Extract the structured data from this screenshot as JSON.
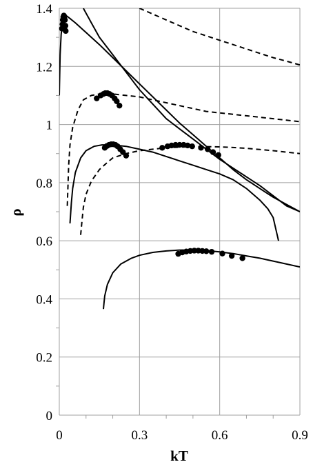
{
  "chart_data": {
    "type": "scatter",
    "xlabel": "kT",
    "ylabel": "ρ",
    "xlim": [
      0,
      0.9
    ],
    "ylim": [
      0,
      1.4
    ],
    "xticks": [
      "0",
      "0.3",
      "0.6",
      "0.9"
    ],
    "yticks": [
      "0",
      "0.2",
      "0.4",
      "0.6",
      "0.8",
      "1",
      "1.2",
      "1.4"
    ],
    "grid": true,
    "legend": "none",
    "line_color": "#000000",
    "grid_color": "#a0a0a0",
    "series": [
      {
        "style": "solid",
        "x": [
          0.0,
          0.003,
          0.007,
          0.012,
          0.018,
          0.024,
          0.03,
          0.04,
          0.06,
          0.09,
          0.12,
          0.15,
          0.2,
          0.25,
          0.3,
          0.35,
          0.4,
          0.45,
          0.5,
          0.55,
          0.6,
          0.65,
          0.7,
          0.75,
          0.8,
          0.85,
          0.9
        ],
        "y": [
          1.1,
          1.24,
          1.31,
          1.35,
          1.37,
          1.375,
          1.372,
          1.365,
          1.35,
          1.325,
          1.3,
          1.275,
          1.23,
          1.185,
          1.14,
          1.095,
          1.05,
          1.005,
          0.965,
          0.925,
          0.885,
          0.845,
          0.81,
          0.78,
          0.75,
          0.725,
          0.7
        ]
      },
      {
        "style": "solid",
        "x": [
          0.09,
          0.12,
          0.15,
          0.2,
          0.25,
          0.3,
          0.35,
          0.4,
          0.45,
          0.5,
          0.55,
          0.6,
          0.65,
          0.7,
          0.75,
          0.8,
          0.85,
          0.9
        ],
        "y": [
          1.4,
          1.35,
          1.3,
          1.24,
          1.18,
          1.12,
          1.07,
          1.02,
          0.985,
          0.95,
          0.915,
          0.88,
          0.85,
          0.82,
          0.79,
          0.755,
          0.72,
          0.7
        ]
      },
      {
        "style": "solid",
        "x": [
          0.04,
          0.045,
          0.05,
          0.06,
          0.08,
          0.1,
          0.13,
          0.16,
          0.2,
          0.25,
          0.3,
          0.35,
          0.4,
          0.45,
          0.5,
          0.55,
          0.6,
          0.65,
          0.7,
          0.75,
          0.78,
          0.8,
          0.81,
          0.82
        ],
        "y": [
          0.66,
          0.73,
          0.78,
          0.835,
          0.885,
          0.91,
          0.925,
          0.93,
          0.93,
          0.925,
          0.915,
          0.905,
          0.89,
          0.875,
          0.86,
          0.845,
          0.83,
          0.81,
          0.78,
          0.74,
          0.71,
          0.68,
          0.64,
          0.6
        ]
      },
      {
        "style": "solid",
        "x": [
          0.165,
          0.167,
          0.17,
          0.18,
          0.2,
          0.23,
          0.27,
          0.3,
          0.35,
          0.4,
          0.45,
          0.5,
          0.55,
          0.6,
          0.65,
          0.7,
          0.75,
          0.8,
          0.85,
          0.9
        ],
        "y": [
          0.365,
          0.385,
          0.41,
          0.45,
          0.49,
          0.52,
          0.54,
          0.55,
          0.56,
          0.565,
          0.568,
          0.568,
          0.566,
          0.562,
          0.556,
          0.548,
          0.54,
          0.53,
          0.52,
          0.51
        ]
      },
      {
        "style": "dashed",
        "x": [
          0.3,
          0.35,
          0.4,
          0.45,
          0.5,
          0.55,
          0.6,
          0.65,
          0.7,
          0.75,
          0.8,
          0.85,
          0.9
        ],
        "y": [
          1.4,
          1.38,
          1.36,
          1.34,
          1.32,
          1.305,
          1.29,
          1.275,
          1.26,
          1.245,
          1.23,
          1.218,
          1.205
        ]
      },
      {
        "style": "dashed",
        "x": [
          0.03,
          0.035,
          0.04,
          0.05,
          0.07,
          0.09,
          0.12,
          0.15,
          0.2,
          0.25,
          0.3,
          0.35,
          0.4,
          0.45,
          0.5,
          0.55,
          0.6,
          0.65,
          0.7,
          0.75,
          0.8,
          0.85,
          0.9
        ],
        "y": [
          0.72,
          0.86,
          0.93,
          0.99,
          1.05,
          1.085,
          1.1,
          1.105,
          1.105,
          1.1,
          1.095,
          1.085,
          1.075,
          1.065,
          1.055,
          1.045,
          1.04,
          1.035,
          1.03,
          1.025,
          1.02,
          1.015,
          1.01
        ]
      },
      {
        "style": "dashed",
        "x": [
          0.08,
          0.085,
          0.09,
          0.1,
          0.12,
          0.15,
          0.18,
          0.2,
          0.25,
          0.3,
          0.35,
          0.4,
          0.45,
          0.5,
          0.55,
          0.6,
          0.65,
          0.7,
          0.75,
          0.8,
          0.85,
          0.9
        ],
        "y": [
          0.62,
          0.67,
          0.715,
          0.76,
          0.805,
          0.845,
          0.87,
          0.885,
          0.9,
          0.91,
          0.915,
          0.92,
          0.922,
          0.924,
          0.924,
          0.923,
          0.921,
          0.918,
          0.914,
          0.91,
          0.905,
          0.9
        ]
      }
    ],
    "points": [
      {
        "x": 0.01,
        "y": 1.33
      },
      {
        "x": 0.012,
        "y": 1.345
      },
      {
        "x": 0.013,
        "y": 1.36
      },
      {
        "x": 0.015,
        "y": 1.37
      },
      {
        "x": 0.017,
        "y": 1.375
      },
      {
        "x": 0.019,
        "y": 1.372
      },
      {
        "x": 0.021,
        "y": 1.36
      },
      {
        "x": 0.023,
        "y": 1.34
      },
      {
        "x": 0.024,
        "y": 1.322
      },
      {
        "x": 0.14,
        "y": 1.09
      },
      {
        "x": 0.155,
        "y": 1.1
      },
      {
        "x": 0.165,
        "y": 1.105
      },
      {
        "x": 0.172,
        "y": 1.108
      },
      {
        "x": 0.18,
        "y": 1.108
      },
      {
        "x": 0.188,
        "y": 1.105
      },
      {
        "x": 0.197,
        "y": 1.1
      },
      {
        "x": 0.207,
        "y": 1.09
      },
      {
        "x": 0.215,
        "y": 1.08
      },
      {
        "x": 0.225,
        "y": 1.065
      },
      {
        "x": 0.17,
        "y": 0.92
      },
      {
        "x": 0.178,
        "y": 0.926
      },
      {
        "x": 0.186,
        "y": 0.93
      },
      {
        "x": 0.194,
        "y": 0.932
      },
      {
        "x": 0.202,
        "y": 0.932
      },
      {
        "x": 0.21,
        "y": 0.93
      },
      {
        "x": 0.218,
        "y": 0.925
      },
      {
        "x": 0.228,
        "y": 0.915
      },
      {
        "x": 0.238,
        "y": 0.905
      },
      {
        "x": 0.25,
        "y": 0.893
      },
      {
        "x": 0.385,
        "y": 0.92
      },
      {
        "x": 0.405,
        "y": 0.925
      },
      {
        "x": 0.42,
        "y": 0.928
      },
      {
        "x": 0.435,
        "y": 0.93
      },
      {
        "x": 0.45,
        "y": 0.93
      },
      {
        "x": 0.465,
        "y": 0.93
      },
      {
        "x": 0.48,
        "y": 0.928
      },
      {
        "x": 0.497,
        "y": 0.925
      },
      {
        "x": 0.53,
        "y": 0.92
      },
      {
        "x": 0.555,
        "y": 0.915
      },
      {
        "x": 0.575,
        "y": 0.905
      },
      {
        "x": 0.595,
        "y": 0.895
      },
      {
        "x": 0.445,
        "y": 0.555
      },
      {
        "x": 0.46,
        "y": 0.56
      },
      {
        "x": 0.475,
        "y": 0.563
      },
      {
        "x": 0.49,
        "y": 0.565
      },
      {
        "x": 0.505,
        "y": 0.566
      },
      {
        "x": 0.52,
        "y": 0.566
      },
      {
        "x": 0.535,
        "y": 0.565
      },
      {
        "x": 0.55,
        "y": 0.564
      },
      {
        "x": 0.57,
        "y": 0.562
      },
      {
        "x": 0.61,
        "y": 0.556
      },
      {
        "x": 0.645,
        "y": 0.548
      },
      {
        "x": 0.685,
        "y": 0.54
      }
    ]
  }
}
